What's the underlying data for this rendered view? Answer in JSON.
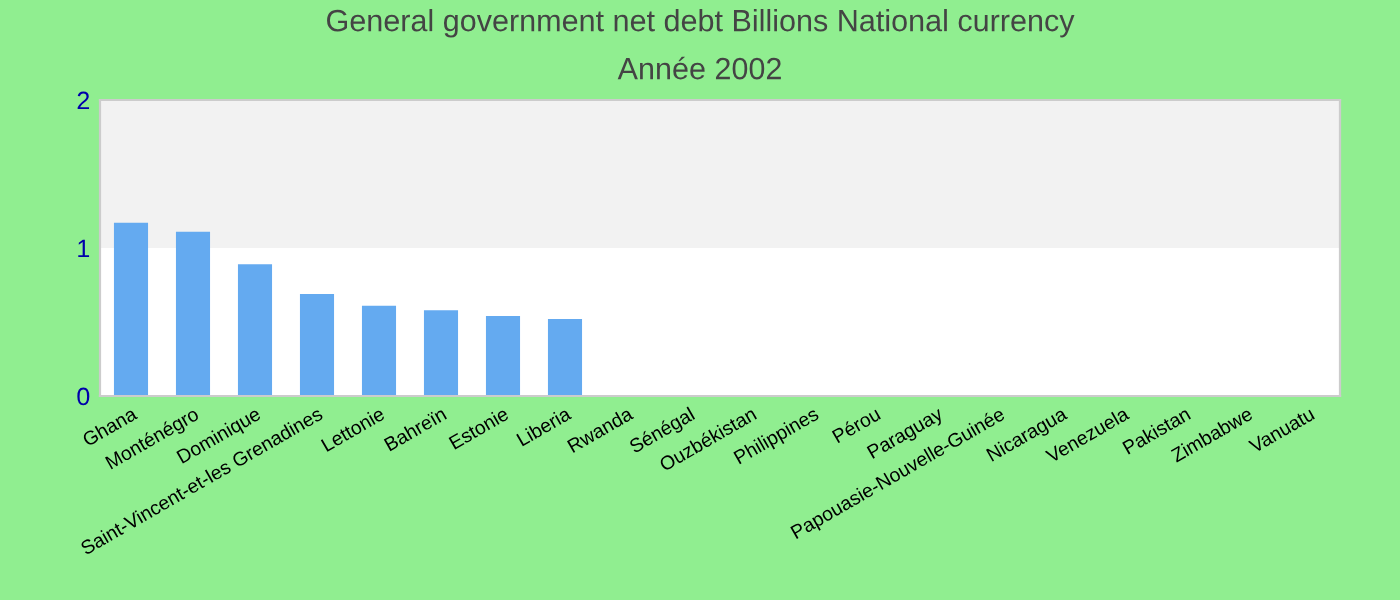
{
  "chart_data": {
    "type": "bar",
    "title": "General government net debt Billions National currency",
    "subtitle": "Année 2002",
    "categories": [
      "Ghana",
      "Monténégro",
      "Dominique",
      "Saint-Vincent-et-les Grenadines",
      "Lettonie",
      "Bahreïn",
      "Estonie",
      "Liberia",
      "Rwanda",
      "Sénégal",
      "Ouzbékistan",
      "Philippines",
      "Pérou",
      "Paraguay",
      "Papouasie-Nouvelle-Guinée",
      "Nicaragua",
      "Venezuela",
      "Pakistan",
      "Zimbabwe",
      "Vanuatu"
    ],
    "series": [
      {
        "color": "#64aaf0",
        "values": [
          1.17,
          1.11,
          0.89,
          0.69,
          0.61,
          0.58,
          0.54,
          0.52,
          null,
          null,
          null,
          null,
          null,
          null,
          null,
          null,
          null,
          null,
          null,
          null
        ]
      }
    ],
    "ylim": [
      0,
      2
    ],
    "yticks": [
      0,
      1,
      2
    ],
    "grid": false,
    "legend": false,
    "bands": [
      {
        "axis": "y",
        "from": 1,
        "to": 2,
        "color": "#f2f2f2"
      }
    ]
  }
}
